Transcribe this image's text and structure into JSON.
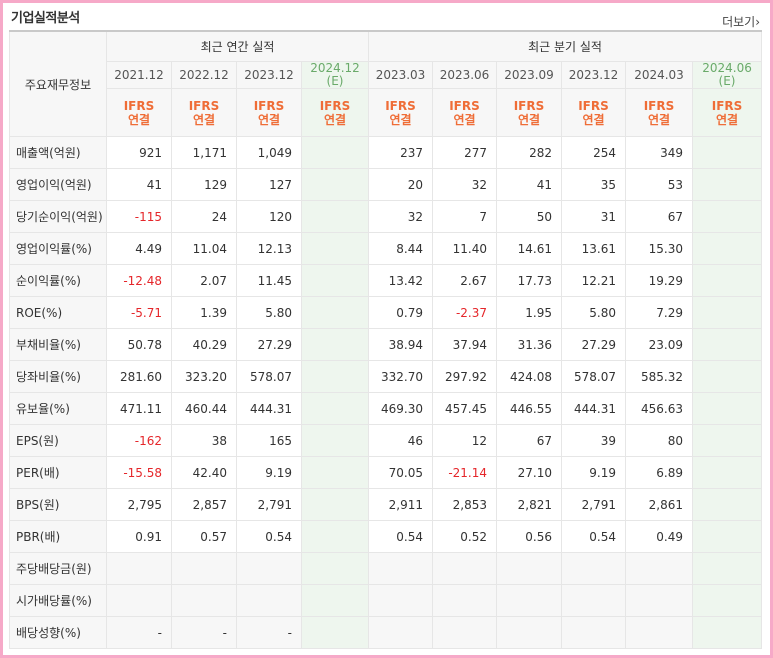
{
  "title": "기업실적분석",
  "more_label": "더보기",
  "header": {
    "row_label": "주요재무정보",
    "annual_group": "최근 연간 실적",
    "quarter_group": "최근 분기 실적",
    "annual_periods": [
      "2021.12",
      "2022.12",
      "2023.12",
      "2024.12"
    ],
    "annual_est": "(E)",
    "quarter_periods": [
      "2023.03",
      "2023.06",
      "2023.09",
      "2023.12",
      "2024.03",
      "2024.06"
    ],
    "quarter_est": "(E)",
    "ifrs": "IFRS",
    "consolidated": "연결"
  },
  "rows": [
    {
      "label": "매출액(억원)",
      "annual": [
        "921",
        "1,171",
        "1,049",
        ""
      ],
      "quarter": [
        "237",
        "277",
        "282",
        "254",
        "349",
        ""
      ]
    },
    {
      "label": "영업이익(억원)",
      "annual": [
        "41",
        "129",
        "127",
        ""
      ],
      "quarter": [
        "20",
        "32",
        "41",
        "35",
        "53",
        ""
      ]
    },
    {
      "label": "당기순이익(억원)",
      "annual": [
        "-115",
        "24",
        "120",
        ""
      ],
      "quarter": [
        "32",
        "7",
        "50",
        "31",
        "67",
        ""
      ]
    },
    {
      "label": "영업이익률(%)",
      "annual": [
        "4.49",
        "11.04",
        "12.13",
        ""
      ],
      "quarter": [
        "8.44",
        "11.40",
        "14.61",
        "13.61",
        "15.30",
        ""
      ]
    },
    {
      "label": "순이익률(%)",
      "annual": [
        "-12.48",
        "2.07",
        "11.45",
        ""
      ],
      "quarter": [
        "13.42",
        "2.67",
        "17.73",
        "12.21",
        "19.29",
        ""
      ]
    },
    {
      "label": "ROE(%)",
      "annual": [
        "-5.71",
        "1.39",
        "5.80",
        ""
      ],
      "quarter": [
        "0.79",
        "-2.37",
        "1.95",
        "5.80",
        "7.29",
        ""
      ]
    },
    {
      "label": "부채비율(%)",
      "annual": [
        "50.78",
        "40.29",
        "27.29",
        ""
      ],
      "quarter": [
        "38.94",
        "37.94",
        "31.36",
        "27.29",
        "23.09",
        ""
      ]
    },
    {
      "label": "당좌비율(%)",
      "annual": [
        "281.60",
        "323.20",
        "578.07",
        ""
      ],
      "quarter": [
        "332.70",
        "297.92",
        "424.08",
        "578.07",
        "585.32",
        ""
      ]
    },
    {
      "label": "유보율(%)",
      "annual": [
        "471.11",
        "460.44",
        "444.31",
        ""
      ],
      "quarter": [
        "469.30",
        "457.45",
        "446.55",
        "444.31",
        "456.63",
        ""
      ]
    },
    {
      "label": "EPS(원)",
      "annual": [
        "-162",
        "38",
        "165",
        ""
      ],
      "quarter": [
        "46",
        "12",
        "67",
        "39",
        "80",
        ""
      ]
    },
    {
      "label": "PER(배)",
      "annual": [
        "-15.58",
        "42.40",
        "9.19",
        ""
      ],
      "quarter": [
        "70.05",
        "-21.14",
        "27.10",
        "9.19",
        "6.89",
        ""
      ]
    },
    {
      "label": "BPS(원)",
      "annual": [
        "2,795",
        "2,857",
        "2,791",
        ""
      ],
      "quarter": [
        "2,911",
        "2,853",
        "2,821",
        "2,791",
        "2,861",
        ""
      ]
    },
    {
      "label": "PBR(배)",
      "annual": [
        "0.91",
        "0.57",
        "0.54",
        ""
      ],
      "quarter": [
        "0.54",
        "0.52",
        "0.56",
        "0.54",
        "0.49",
        ""
      ]
    },
    {
      "label": "주당배당금(원)",
      "annual": [
        "",
        "",
        "",
        ""
      ],
      "quarter": [
        "",
        "",
        "",
        "",
        "",
        ""
      ]
    },
    {
      "label": "시가배당률(%)",
      "annual": [
        "",
        "",
        "",
        ""
      ],
      "quarter": [
        "",
        "",
        "",
        "",
        "",
        ""
      ]
    },
    {
      "label": "배당성향(%)",
      "annual": [
        "-",
        "-",
        "-",
        ""
      ],
      "quarter": [
        "",
        "",
        "",
        "",
        "",
        ""
      ]
    }
  ],
  "colors": {
    "border": "#f6a9c8",
    "ifrs": "#ef6d37",
    "negative": "#e5262a",
    "estimate_bg": "#eef6ee"
  }
}
